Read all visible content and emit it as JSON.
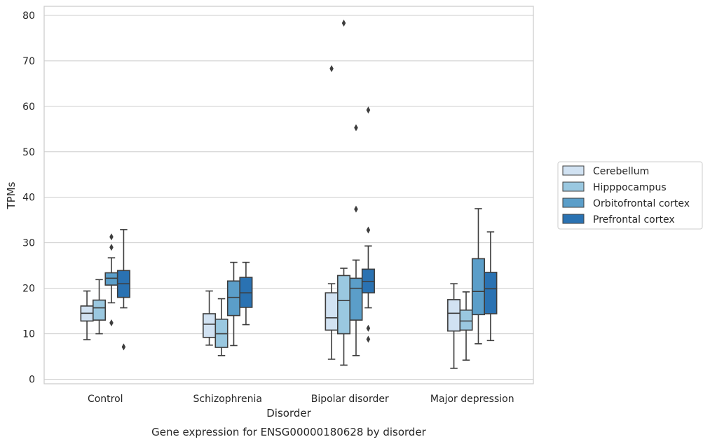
{
  "chart_data": {
    "type": "box",
    "title": "",
    "caption": "Gene expression for ENSG00000180628 by disorder",
    "xlabel": "Disorder",
    "ylabel": "TPMs",
    "ylim": [
      -1,
      82
    ],
    "yticks": [
      0,
      10,
      20,
      30,
      40,
      50,
      60,
      70,
      80
    ],
    "grid": "horizontal",
    "legend_position": "right",
    "categories": [
      "Control",
      "Schizophrenia",
      "Bipolar disorder",
      "Major depression"
    ],
    "series": [
      {
        "name": "Cerebellum",
        "color": "#d1e2f2",
        "boxes": [
          {
            "whislo": 8.7,
            "q1": 12.8,
            "med": 14.5,
            "q3": 16.1,
            "whishi": 19.4,
            "fliers": []
          },
          {
            "whislo": 7.5,
            "q1": 9.2,
            "med": 12.1,
            "q3": 14.4,
            "whishi": 19.4,
            "fliers": []
          },
          {
            "whislo": 4.4,
            "q1": 10.8,
            "med": 13.5,
            "q3": 19.0,
            "whishi": 21.0,
            "fliers": [
              68.3
            ]
          },
          {
            "whislo": 2.4,
            "q1": 10.6,
            "med": 14.5,
            "q3": 17.5,
            "whishi": 21.0,
            "fliers": []
          }
        ]
      },
      {
        "name": "Hipppocampus",
        "color": "#9ac8e0",
        "boxes": [
          {
            "whislo": 10.0,
            "q1": 13.0,
            "med": 15.7,
            "q3": 17.4,
            "whishi": 21.9,
            "fliers": []
          },
          {
            "whislo": 5.2,
            "q1": 7.0,
            "med": 10.0,
            "q3": 13.2,
            "whishi": 17.7,
            "fliers": []
          },
          {
            "whislo": 3.1,
            "q1": 10.0,
            "med": 17.3,
            "q3": 22.8,
            "whishi": 24.4,
            "fliers": [
              78.3
            ]
          },
          {
            "whislo": 4.2,
            "q1": 10.8,
            "med": 12.8,
            "q3": 15.2,
            "whishi": 19.2,
            "fliers": []
          }
        ]
      },
      {
        "name": "Orbitofrontal cortex",
        "color": "#5b9ec9",
        "boxes": [
          {
            "whislo": 16.8,
            "q1": 20.7,
            "med": 22.2,
            "q3": 23.4,
            "whishi": 26.7,
            "fliers": [
              31.3,
              29.0,
              12.4
            ]
          },
          {
            "whislo": 7.4,
            "q1": 14.0,
            "med": 18.0,
            "q3": 21.6,
            "whishi": 25.7,
            "fliers": []
          },
          {
            "whislo": 5.2,
            "q1": 13.0,
            "med": 20.0,
            "q3": 22.2,
            "whishi": 26.2,
            "fliers": [
              55.3,
              37.4
            ]
          },
          {
            "whislo": 7.8,
            "q1": 14.2,
            "med": 19.3,
            "q3": 26.5,
            "whishi": 37.5,
            "fliers": []
          }
        ]
      },
      {
        "name": "Prefrontal cortex",
        "color": "#2a72b2",
        "boxes": [
          {
            "whislo": 15.7,
            "q1": 18.0,
            "med": 21.0,
            "q3": 23.9,
            "whishi": 32.9,
            "fliers": [
              7.1
            ]
          },
          {
            "whislo": 12.0,
            "q1": 15.8,
            "med": 19.0,
            "q3": 22.4,
            "whishi": 25.7,
            "fliers": []
          },
          {
            "whislo": 15.7,
            "q1": 19.0,
            "med": 21.5,
            "q3": 24.2,
            "whishi": 29.3,
            "fliers": [
              59.2,
              32.8,
              11.2,
              8.8
            ]
          },
          {
            "whislo": 8.5,
            "q1": 14.4,
            "med": 19.9,
            "q3": 23.5,
            "whishi": 32.4,
            "fliers": []
          }
        ]
      }
    ]
  }
}
